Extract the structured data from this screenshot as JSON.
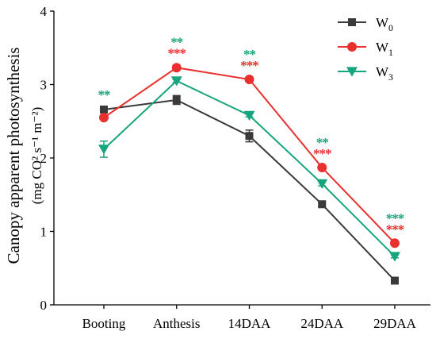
{
  "chart_data": {
    "type": "line",
    "categories": [
      "Booting",
      "Anthesis",
      "14DAA",
      "24DAA",
      "29DAA"
    ],
    "ylabel": "Canopy apparent photosynthesis",
    "ylabel_unit": "(mg CO² s⁻¹ m⁻²)",
    "ylim": [
      0,
      4
    ],
    "yticks": [
      "0",
      "1",
      "2",
      "3",
      "4"
    ],
    "legend_position": "top-right",
    "series": [
      {
        "name": "W",
        "subscript": "0",
        "color": "#3a3a3a",
        "marker": "square",
        "values": [
          2.66,
          2.79,
          2.3,
          1.37,
          0.33
        ],
        "errors": [
          0.03,
          0.06,
          0.08,
          0.03,
          0.02
        ],
        "sig": [
          "",
          "",
          "",
          "",
          ""
        ]
      },
      {
        "name": "W",
        "subscript": "1",
        "color": "#e8302f",
        "marker": "circle",
        "values": [
          2.55,
          3.23,
          3.07,
          1.87,
          0.84
        ],
        "errors": [
          0.02,
          0.03,
          0.02,
          0.02,
          0.02
        ],
        "sig": [
          "",
          "***",
          "***",
          "***",
          "***"
        ]
      },
      {
        "name": "W",
        "subscript": "3",
        "color": "#17a57d",
        "marker": "triangle-down",
        "values": [
          2.12,
          3.05,
          2.58,
          1.65,
          0.66
        ],
        "errors": [
          0.11,
          0.02,
          0.02,
          0.03,
          0.02
        ],
        "sig": [
          "**",
          "**",
          "**",
          "**",
          "***"
        ]
      }
    ]
  }
}
